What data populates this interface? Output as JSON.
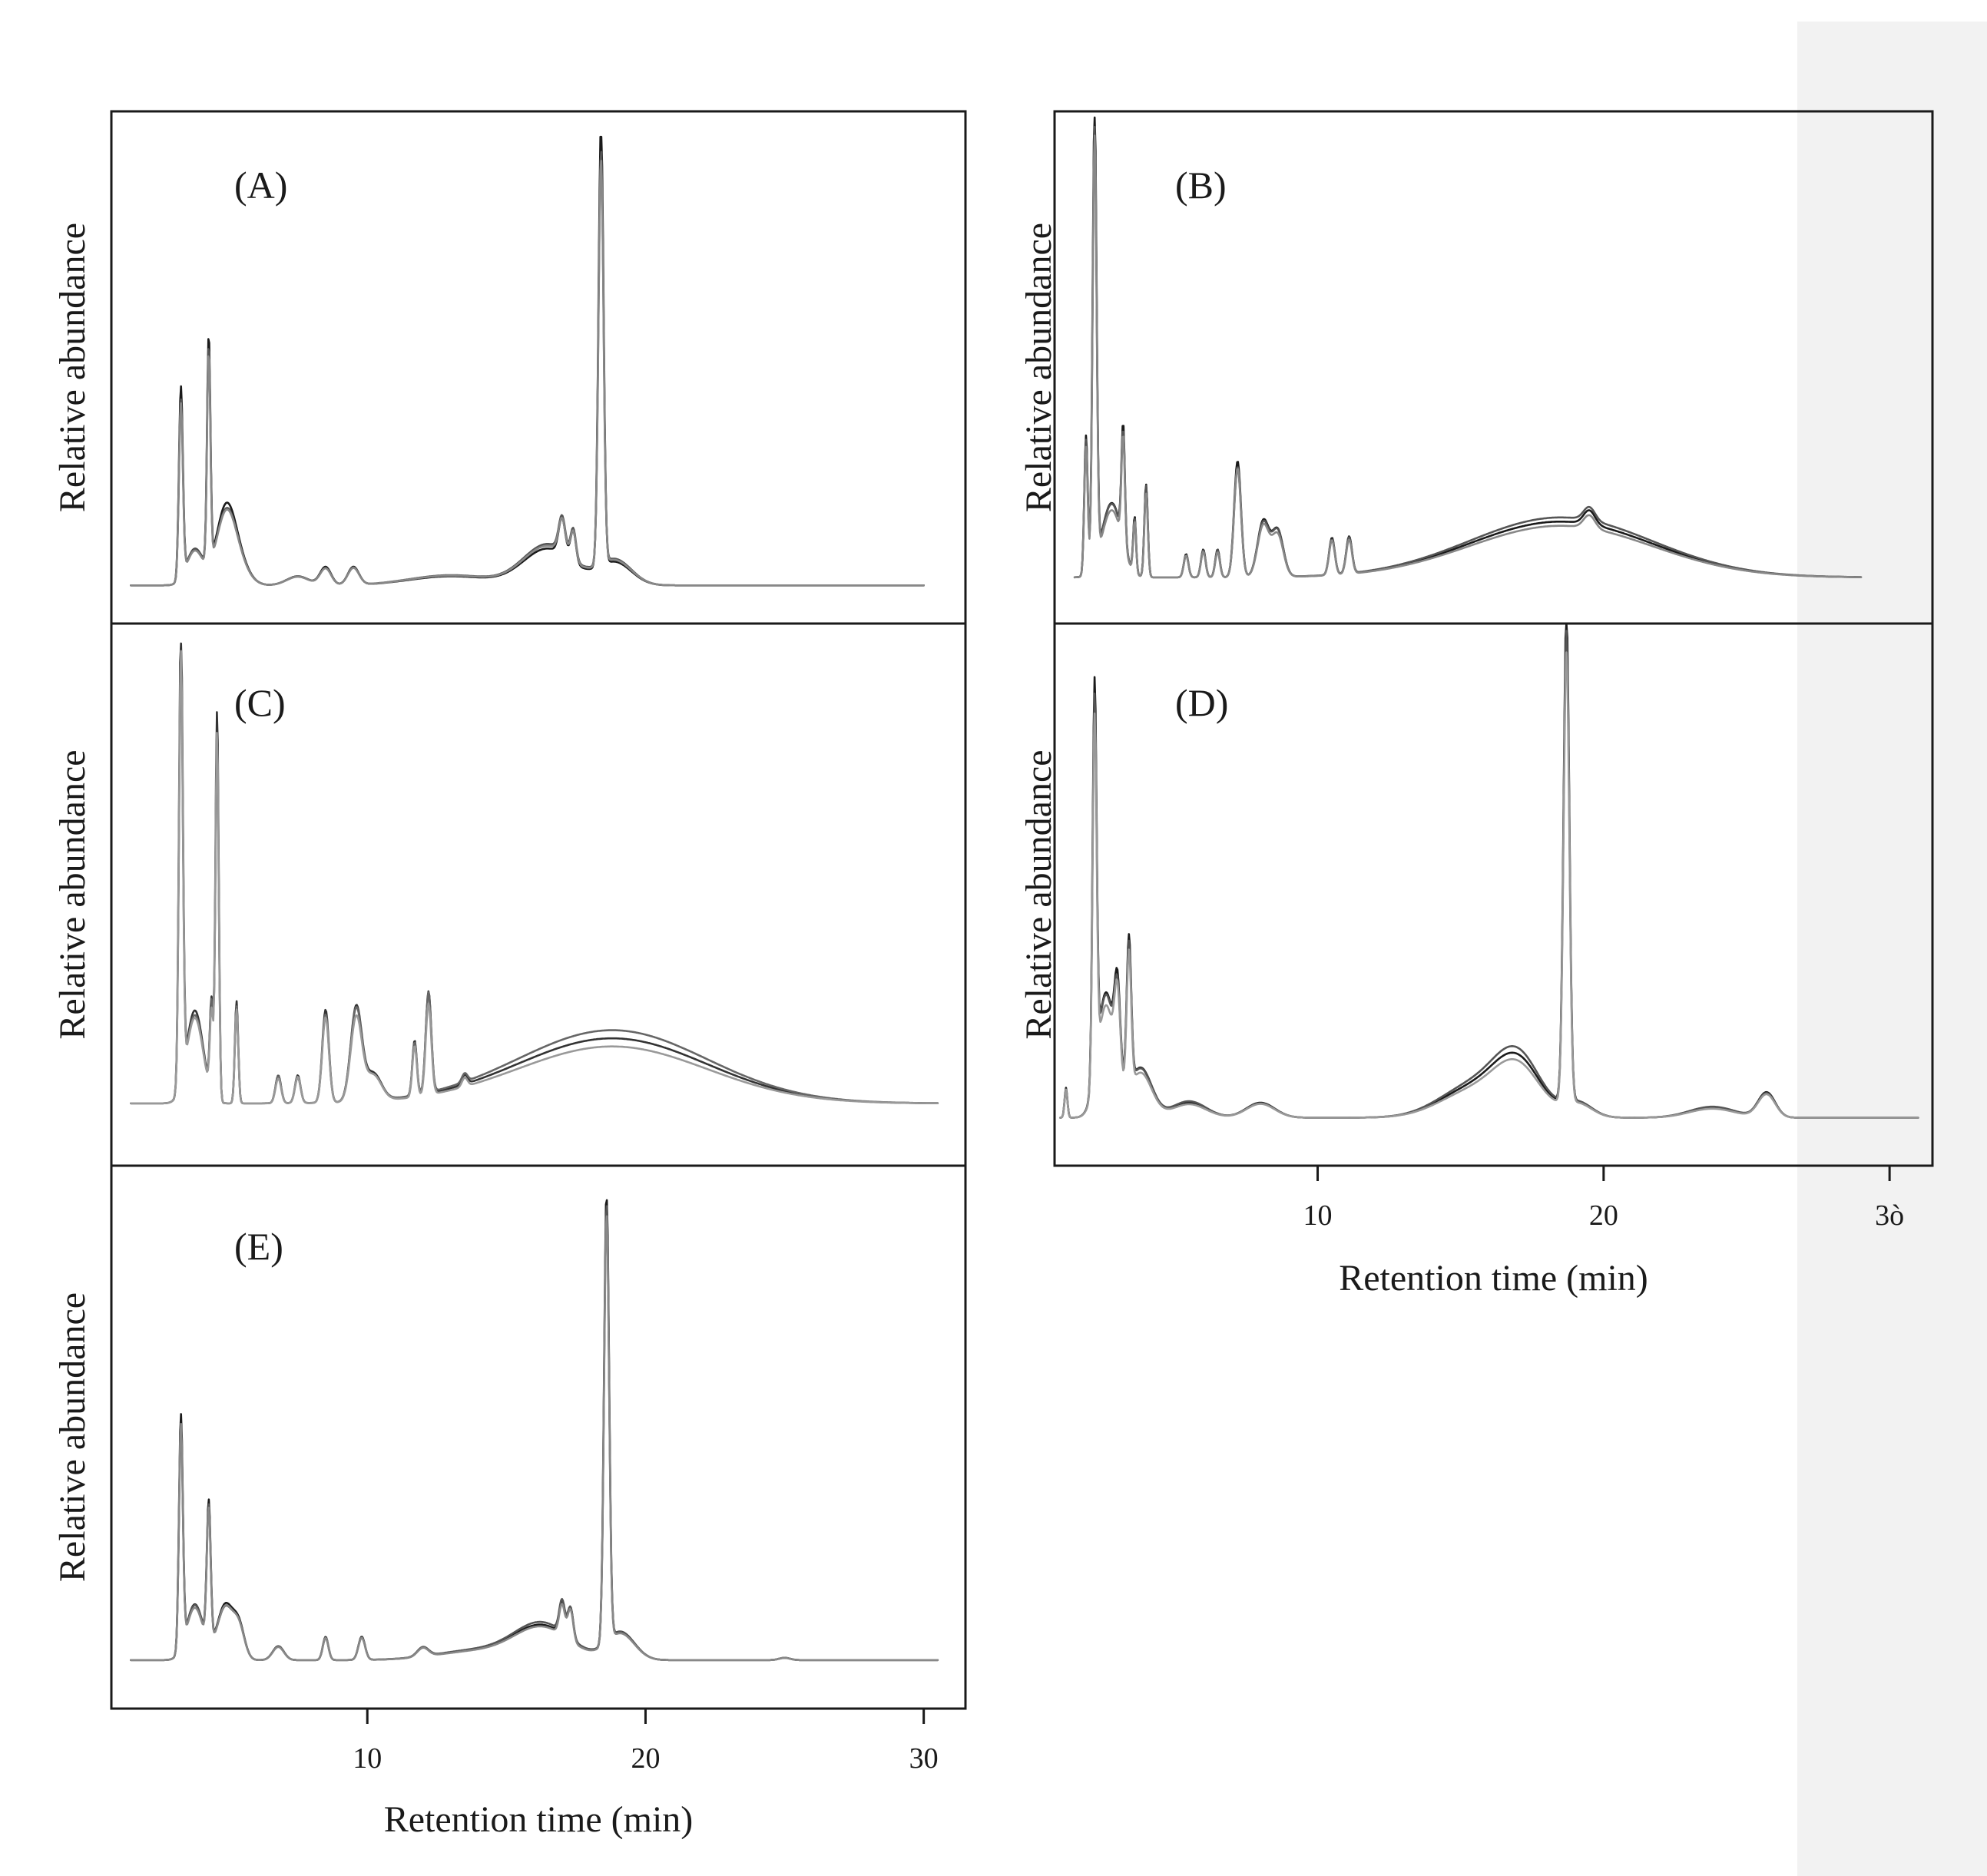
{
  "chart_data": [
    {
      "panel": "(A)",
      "type": "line",
      "ylabel": "Relative abundance",
      "xlabel": "",
      "xlim": [
        0.8,
        31.5
      ],
      "ylim": [
        0,
        1
      ],
      "tick_labels": [],
      "ticks": [],
      "x_start": 1.5,
      "x_end": 30.0,
      "baseline": 0.03,
      "peaks": [
        [
          3.3,
          0.42,
          0.07
        ],
        [
          4.3,
          0.5,
          0.06
        ],
        [
          3.8,
          0.08,
          0.3
        ],
        [
          4.9,
          0.15,
          0.35
        ],
        [
          5.3,
          0.05,
          0.4
        ],
        [
          7.5,
          0.02,
          0.4
        ],
        [
          8.5,
          0.04,
          0.2
        ],
        [
          9.5,
          0.04,
          0.2
        ],
        [
          13.0,
          0.02,
          1.5
        ],
        [
          16.5,
          0.08,
          0.9
        ],
        [
          17.0,
          0.08,
          0.12
        ],
        [
          17.4,
          0.07,
          0.1
        ],
        [
          18.4,
          0.98,
          0.09
        ],
        [
          18.9,
          0.05,
          0.6
        ]
      ],
      "series": [
        {
          "color": "#1a1a1a",
          "scale": 1.0,
          "shift": 0
        },
        {
          "color": "#555555",
          "scale": 0.96,
          "shift": 0.05
        },
        {
          "color": "#888888",
          "scale": 0.93,
          "shift": 0.03
        }
      ]
    },
    {
      "panel": "(B)",
      "type": "line",
      "ylabel": "Relative abundance",
      "xlabel": "",
      "xlim": [
        0.8,
        31.5
      ],
      "ylim": [
        0,
        1
      ],
      "tick_labels": [],
      "ticks": [],
      "x_start": 1.5,
      "x_end": 29.0,
      "baseline": 0.03,
      "peaks": [
        [
          2.2,
          0.98,
          0.07
        ],
        [
          1.9,
          0.3,
          0.06
        ],
        [
          2.8,
          0.16,
          0.35
        ],
        [
          3.2,
          0.25,
          0.06
        ],
        [
          3.6,
          0.12,
          0.05
        ],
        [
          4.0,
          0.2,
          0.06
        ],
        [
          5.4,
          0.05,
          0.08
        ],
        [
          6.0,
          0.06,
          0.08
        ],
        [
          6.5,
          0.06,
          0.08
        ],
        [
          7.2,
          0.25,
          0.12
        ],
        [
          8.1,
          0.12,
          0.2
        ],
        [
          8.6,
          0.1,
          0.2
        ],
        [
          10.5,
          0.08,
          0.1
        ],
        [
          11.1,
          0.08,
          0.1
        ],
        [
          18.5,
          0.12,
          3.2
        ],
        [
          19.5,
          0.03,
          0.2
        ]
      ],
      "series": [
        {
          "color": "#1a1a1a",
          "scale": 1.0,
          "shift": 0
        },
        {
          "color": "#555555",
          "scale": 0.97,
          "shift": 0.03
        },
        {
          "color": "#888888",
          "scale": 0.92,
          "shift": -0.03
        }
      ]
    },
    {
      "panel": "(C)",
      "type": "line",
      "ylabel": "Relative abundance",
      "xlabel": "",
      "xlim": [
        0.8,
        31.5
      ],
      "ylim": [
        0,
        1
      ],
      "tick_labels": [],
      "ticks": [],
      "x_start": 1.5,
      "x_end": 30.5,
      "baseline": 0.03,
      "peaks": [
        [
          3.3,
          0.98,
          0.07
        ],
        [
          3.8,
          0.2,
          0.3
        ],
        [
          4.4,
          0.2,
          0.06
        ],
        [
          4.6,
          0.84,
          0.06
        ],
        [
          5.3,
          0.22,
          0.06
        ],
        [
          6.8,
          0.06,
          0.1
        ],
        [
          7.5,
          0.06,
          0.1
        ],
        [
          8.5,
          0.2,
          0.12
        ],
        [
          9.6,
          0.2,
          0.2
        ],
        [
          10.2,
          0.06,
          0.3
        ],
        [
          11.7,
          0.12,
          0.08
        ],
        [
          12.2,
          0.22,
          0.1
        ],
        [
          13.5,
          0.02,
          0.1
        ],
        [
          18.8,
          0.14,
          3.4
        ]
      ],
      "series": [
        {
          "color": "#333333",
          "scale": 1.0,
          "shift": 0
        },
        {
          "color": "#666666",
          "scale": 0.95,
          "shift": 0.05
        },
        {
          "color": "#999999",
          "scale": 0.92,
          "shift": -0.05
        }
      ]
    },
    {
      "panel": "(D)",
      "type": "line",
      "ylabel": "Relative abundance",
      "xlabel": "Retention time (min)",
      "xlim": [
        0.8,
        31.5
      ],
      "ylim": [
        0,
        1
      ],
      "tick_labels": [
        "10",
        "20",
        "3ò"
      ],
      "ticks": [
        10,
        20,
        30
      ],
      "x_start": 1.0,
      "x_end": 31.0,
      "baseline": 0.03,
      "peaks": [
        [
          1.2,
          0.06,
          0.05
        ],
        [
          2.2,
          0.78,
          0.07
        ],
        [
          2.6,
          0.25,
          0.3
        ],
        [
          3.0,
          0.18,
          0.1
        ],
        [
          3.4,
          0.3,
          0.08
        ],
        [
          3.8,
          0.1,
          0.4
        ],
        [
          5.5,
          0.03,
          0.6
        ],
        [
          8.0,
          0.03,
          0.5
        ],
        [
          15.5,
          0.06,
          1.2
        ],
        [
          17.0,
          0.1,
          0.8
        ],
        [
          18.7,
          0.98,
          0.1
        ],
        [
          19.1,
          0.03,
          0.5
        ],
        [
          23.8,
          0.02,
          0.8
        ],
        [
          25.7,
          0.05,
          0.3
        ]
      ],
      "series": [
        {
          "color": "#1a1a1a",
          "scale": 1.0,
          "shift": 0
        },
        {
          "color": "#555555",
          "scale": 0.96,
          "shift": 0.04
        },
        {
          "color": "#999999",
          "scale": 0.92,
          "shift": -0.04
        }
      ]
    },
    {
      "panel": "(E)",
      "type": "line",
      "ylabel": "Relative abundance",
      "xlabel": "Retention time (min)",
      "xlim": [
        0.8,
        31.5
      ],
      "ylim": [
        0,
        1
      ],
      "tick_labels": [
        "10",
        "20",
        "30"
      ],
      "ticks": [
        10,
        20,
        30
      ],
      "x_start": 1.5,
      "x_end": 30.5,
      "baseline": 0.03,
      "peaks": [
        [
          3.3,
          0.5,
          0.07
        ],
        [
          4.3,
          0.3,
          0.07
        ],
        [
          3.8,
          0.12,
          0.3
        ],
        [
          4.9,
          0.12,
          0.3
        ],
        [
          5.4,
          0.06,
          0.2
        ],
        [
          6.8,
          0.03,
          0.2
        ],
        [
          8.5,
          0.05,
          0.1
        ],
        [
          9.8,
          0.05,
          0.12
        ],
        [
          12.0,
          0.02,
          0.2
        ],
        [
          14.0,
          0.02,
          1.5
        ],
        [
          16.3,
          0.07,
          1.0
        ],
        [
          17.0,
          0.07,
          0.1
        ],
        [
          17.3,
          0.07,
          0.1
        ],
        [
          18.6,
          0.97,
          0.09
        ],
        [
          19.1,
          0.06,
          0.5
        ],
        [
          25.0,
          0.005,
          0.2
        ]
      ],
      "series": [
        {
          "color": "#1a1a1a",
          "scale": 1.0,
          "shift": 0
        },
        {
          "color": "#555555",
          "scale": 0.97,
          "shift": 0.03
        },
        {
          "color": "#888888",
          "scale": 0.95,
          "shift": -0.02
        }
      ]
    }
  ]
}
